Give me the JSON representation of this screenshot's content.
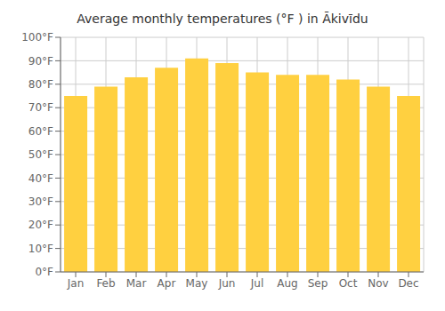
{
  "chart_data": {
    "type": "bar",
    "title": "Average monthly temperatures (°F ) in Ākivīdu",
    "categories": [
      "Jan",
      "Feb",
      "Mar",
      "Apr",
      "May",
      "Jun",
      "Jul",
      "Aug",
      "Sep",
      "Oct",
      "Nov",
      "Dec"
    ],
    "values": [
      75,
      79,
      83,
      87,
      91,
      89,
      85,
      84,
      84,
      82,
      79,
      75
    ],
    "color": "#FFD040",
    "ylim": [
      0,
      100
    ],
    "yticks": [
      {
        "value": 0,
        "label": "0°F"
      },
      {
        "value": 10,
        "label": "10°F"
      },
      {
        "value": 20,
        "label": "20°F"
      },
      {
        "value": 30,
        "label": "30°F"
      },
      {
        "value": 40,
        "label": "40°F"
      },
      {
        "value": 50,
        "label": "50°F"
      },
      {
        "value": 60,
        "label": "60°F"
      },
      {
        "value": 70,
        "label": "70°F"
      },
      {
        "value": 80,
        "label": "80°F"
      },
      {
        "value": 90,
        "label": "90°F"
      },
      {
        "value": 100,
        "label": "100°F"
      }
    ],
    "grid": true
  }
}
